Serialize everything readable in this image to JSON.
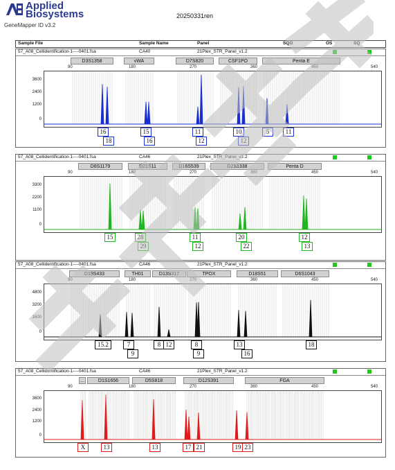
{
  "header": {
    "brand_line1": "Applied",
    "brand_line2": "Biosystems",
    "software": "GeneMapper ID v3.2",
    "report_id": "20250331ren",
    "columns": {
      "sample_file": "Sample File",
      "sample_name": "Sample Name",
      "panel": "Panel",
      "sqo": "SQO",
      "os": "OS",
      "sq": "SQ"
    }
  },
  "panels": [
    {
      "file": "57_A08_Cellidentification-1----0401.fsa",
      "name": "CA40",
      "panel": "21Plex_STR_Panel_v1.2",
      "color": "#1a2fd0",
      "loci": [
        "D3S1358",
        "vWA",
        "D7S820",
        "CSF1PO",
        "Penta E"
      ],
      "yticks": [
        "3600",
        "2400",
        "1200",
        "0"
      ],
      "xticks": [
        "90",
        "180",
        "270",
        "360",
        "450",
        "540"
      ],
      "calls_top": [
        "16",
        "15",
        "11",
        "10",
        "5",
        "11"
      ],
      "calls_bottom": [
        "18",
        "16",
        "12",
        "12"
      ]
    },
    {
      "file": "57_A08_Cellidentification-1----0401.fsa",
      "name": "CA46",
      "panel": "21Plex_STR_Panel_v1.2",
      "color": "#1fb51f",
      "loci": [
        "D8S1179",
        "D21S11",
        "D16S539",
        "D2S1338",
        "Penta D"
      ],
      "yticks": [
        "3300",
        "2200",
        "1100",
        "0"
      ],
      "xticks": [
        "90",
        "180",
        "270",
        "360",
        "450",
        "540"
      ],
      "calls_top": [
        "15",
        "28",
        "11",
        "20",
        "12"
      ],
      "calls_bottom": [
        "29",
        "12",
        "22",
        "13"
      ]
    },
    {
      "file": "57_A08_Cellidentification-1----0401.fsa",
      "name": "CA46",
      "panel": "21Plex_STR_Panel_v1.2",
      "color": "#111111",
      "loci": [
        "D19S433",
        "TH01",
        "D13S317",
        "TPOX",
        "D18S51",
        "D6S1043"
      ],
      "yticks": [
        "4800",
        "3200",
        "1600",
        "0"
      ],
      "xticks": [
        "90",
        "180",
        "270",
        "360",
        "450",
        "540"
      ],
      "calls_top": [
        "15.2",
        "7",
        "8",
        "12",
        "8",
        "13",
        "18"
      ],
      "calls_bottom": [
        "9",
        "9",
        "16"
      ]
    },
    {
      "file": "57_A08_Cellidentification-1----0401.fsa",
      "name": "CA46",
      "panel": "21Plex_STR_Panel_v1.2",
      "color": "#e01b1b",
      "loci": [
        "...",
        "D1S1656",
        "D5S818",
        "D12S391",
        "FGA"
      ],
      "yticks": [
        "3600",
        "2400",
        "1200",
        "0"
      ],
      "xticks": [
        "90",
        "180",
        "270",
        "360",
        "450",
        "540"
      ],
      "calls_top": [
        "X",
        "13",
        "13",
        "17",
        "21",
        "19",
        "23"
      ],
      "calls_bottom": []
    }
  ]
}
